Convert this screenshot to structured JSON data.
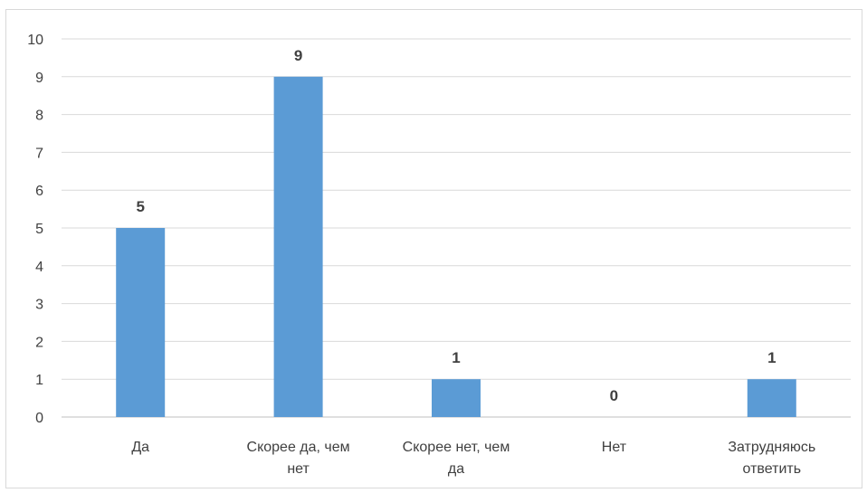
{
  "chart_data": {
    "type": "bar",
    "categories": [
      [
        "Да"
      ],
      [
        "Скорее да, чем",
        "нет"
      ],
      [
        "Скорее нет, чем",
        "да"
      ],
      [
        "Нет"
      ],
      [
        "Затрудняюсь",
        "ответить"
      ]
    ],
    "values": [
      5,
      9,
      1,
      0,
      1
    ],
    "y_ticks": [
      "0",
      "1",
      "2",
      "3",
      "4",
      "5",
      "6",
      "7",
      "8",
      "9",
      "10"
    ],
    "ylim": [
      0,
      10
    ],
    "grid": true,
    "data_labels": true,
    "bar_color": "#5b9bd5",
    "grid_color": "#d9d9d9",
    "axis_color": "#bfbfbf",
    "text_color": "#404040"
  }
}
